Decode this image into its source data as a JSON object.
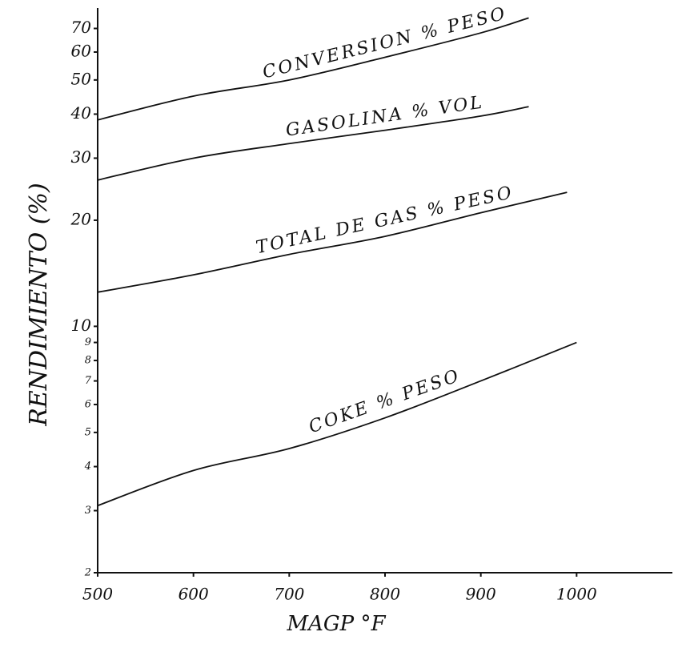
{
  "chart_data": {
    "type": "line",
    "x_label": "MAGP °F",
    "y_label": "RENDIMIENTO (%)",
    "xlim": [
      500,
      1100
    ],
    "xticks": [
      500,
      600,
      700,
      800,
      900,
      1000
    ],
    "ylim": [
      2,
      80
    ],
    "yscale": "log",
    "yticks": [
      2,
      3,
      4,
      5,
      6,
      7,
      8,
      9,
      10,
      20,
      30,
      40,
      50,
      60,
      70
    ],
    "grid": false,
    "series": [
      {
        "name": "CONVERSION % PESO",
        "color": "#111111",
        "x": [
          500,
          600,
          700,
          800,
          900,
          950
        ],
        "values": [
          38.5,
          45,
          50,
          58,
          68,
          75
        ]
      },
      {
        "name": "GASOLINA % VOL",
        "color": "#111111",
        "x": [
          500,
          600,
          700,
          800,
          900,
          950
        ],
        "values": [
          26,
          30,
          33,
          36,
          39.5,
          42
        ]
      },
      {
        "name": "TOTAL DE GAS % PESO",
        "color": "#111111",
        "x": [
          500,
          600,
          700,
          800,
          900,
          990
        ],
        "values": [
          12.5,
          14,
          16,
          18,
          21,
          24
        ]
      },
      {
        "name": "COKE % PESO",
        "color": "#111111",
        "x": [
          500,
          600,
          700,
          800,
          900,
          1000
        ],
        "values": [
          3.1,
          3.9,
          4.5,
          5.5,
          7,
          9
        ]
      }
    ]
  }
}
